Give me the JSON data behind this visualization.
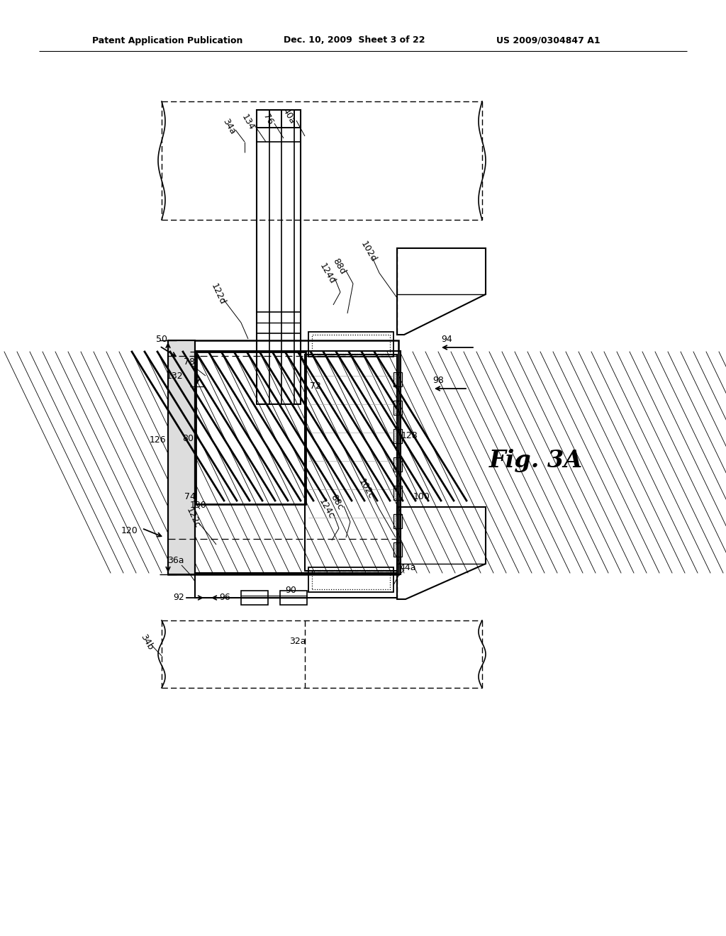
{
  "bg_color": "#ffffff",
  "header_text1": "Patent Application Publication",
  "header_text2": "Dec. 10, 2009  Sheet 3 of 22",
  "header_text3": "US 2009/0304847 A1",
  "fig_label": "Fig. 3A"
}
